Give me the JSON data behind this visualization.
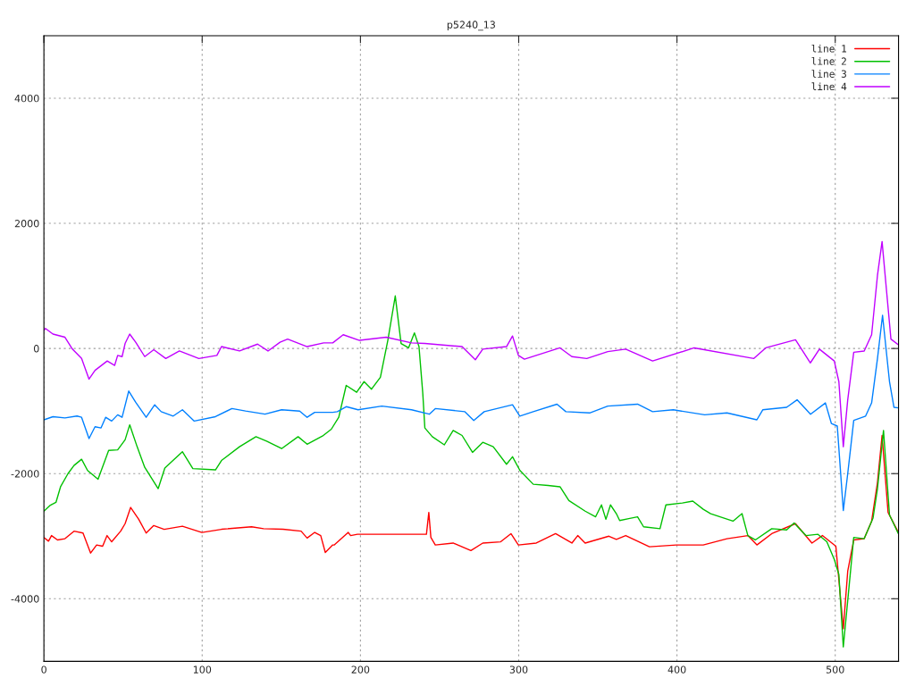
{
  "chart_data": {
    "type": "line",
    "title": "p5240_13",
    "xlim": [
      0,
      540
    ],
    "ylim": [
      -5000,
      5000
    ],
    "xticks": [
      0,
      100,
      200,
      300,
      400,
      500
    ],
    "yticks": [
      -4000,
      -2000,
      0,
      2000,
      4000
    ],
    "grid": true,
    "legend": "top right",
    "line_style": "solid",
    "series": [
      {
        "name": "line 1",
        "color": "#ff0000",
        "x": [
          0,
          2.9,
          4.8,
          8.6,
          13.3,
          19,
          24.7,
          29.5,
          33.3,
          37.1,
          39.9,
          42.8,
          48.5,
          51.3,
          54.8,
          59.9,
          64.6,
          69.4,
          76,
          87.5,
          99.8,
          112.2,
          131.2,
          138.8,
          151.1,
          162.5,
          166.3,
          171.1,
          174.9,
          177.8,
          182.5,
          183.5,
          192.3,
          193.8,
          198.1,
          241.7,
          243.2,
          244.5,
          247.3,
          258.6,
          269.8,
          277.3,
          288.6,
          295.1,
          299.8,
          311.1,
          323.3,
          333.6,
          337.3,
          342,
          357,
          361.7,
          367.6,
          382.6,
          399.6,
          416.6,
          431.6,
          444.8,
          450.5,
          459.9,
          474.9,
          485.3,
          491.9,
          500.4,
          505.1,
          507.9,
          511.7,
          518.3,
          523,
          526.7,
          529.6,
          533.4,
          539.9
        ],
        "values": [
          -3020,
          -3080,
          -2990,
          -3060,
          -3040,
          -2920,
          -2950,
          -3270,
          -3140,
          -3160,
          -2990,
          -3090,
          -2920,
          -2800,
          -2540,
          -2730,
          -2950,
          -2830,
          -2890,
          -2840,
          -2940,
          -2890,
          -2850,
          -2880,
          -2890,
          -2920,
          -3030,
          -2940,
          -2990,
          -3260,
          -3140,
          -3140,
          -2940,
          -2990,
          -2970,
          -2970,
          -2620,
          -3020,
          -3140,
          -3110,
          -3230,
          -3110,
          -3090,
          -2960,
          -3140,
          -3110,
          -2960,
          -3110,
          -2990,
          -3110,
          -3000,
          -3050,
          -2990,
          -3170,
          -3140,
          -3140,
          -3040,
          -2990,
          -3140,
          -2960,
          -2800,
          -3110,
          -2990,
          -3160,
          -4480,
          -3560,
          -3060,
          -3040,
          -2760,
          -2140,
          -1390,
          -2620,
          -2940
        ]
      },
      {
        "name": "line 2",
        "color": "#00c000",
        "x": [
          0,
          3.8,
          7.6,
          10.5,
          15.2,
          19,
          23.8,
          27.6,
          34.2,
          40.9,
          46.6,
          51.3,
          54.2,
          58.9,
          63.7,
          72.2,
          76.4,
          87.5,
          94.1,
          108.4,
          112.2,
          123.6,
          134,
          140.7,
          150.2,
          160.6,
          166.3,
          176,
          181.6,
          186.3,
          191,
          197.6,
          202.3,
          207,
          212.6,
          217.3,
          222,
          225.7,
          230.4,
          234.1,
          237,
          239.4,
          240.7,
          245.4,
          253,
          258.6,
          264.2,
          270.8,
          277.3,
          283.9,
          292.3,
          296.1,
          300.8,
          309.2,
          318.6,
          326.1,
          331.7,
          342,
          348.6,
          352.3,
          355.1,
          358,
          361.7,
          363.8,
          369.5,
          375.1,
          378.9,
          389.3,
          393,
          403.4,
          410,
          416.6,
          421.3,
          435.4,
          441.1,
          444.8,
          449.5,
          459.9,
          469.3,
          474,
          481.5,
          489.1,
          494.7,
          499.4,
          502.3,
          505.1,
          507.9,
          511.7,
          518.3,
          523.9,
          526.7,
          530.5,
          534.3,
          539.9
        ],
        "values": [
          -2600,
          -2510,
          -2460,
          -2210,
          -2000,
          -1870,
          -1770,
          -1950,
          -2090,
          -1630,
          -1620,
          -1460,
          -1220,
          -1570,
          -1900,
          -2240,
          -1910,
          -1650,
          -1920,
          -1940,
          -1790,
          -1570,
          -1410,
          -1480,
          -1600,
          -1410,
          -1530,
          -1400,
          -1290,
          -1100,
          -590,
          -700,
          -530,
          -650,
          -460,
          130,
          840,
          80,
          10,
          250,
          30,
          -720,
          -1270,
          -1410,
          -1540,
          -1310,
          -1390,
          -1660,
          -1500,
          -1570,
          -1850,
          -1730,
          -1950,
          -2170,
          -2190,
          -2210,
          -2430,
          -2600,
          -2690,
          -2500,
          -2730,
          -2500,
          -2640,
          -2750,
          -2720,
          -2690,
          -2850,
          -2880,
          -2500,
          -2470,
          -2440,
          -2570,
          -2640,
          -2760,
          -2640,
          -2990,
          -3060,
          -2880,
          -2900,
          -2790,
          -2990,
          -2970,
          -3090,
          -3370,
          -3610,
          -4770,
          -4030,
          -3020,
          -3040,
          -2710,
          -2240,
          -1310,
          -2660,
          -2960
        ]
      },
      {
        "name": "line 3",
        "color": "#0080ff",
        "x": [
          0,
          5.7,
          13.3,
          20.9,
          23.8,
          28.5,
          32.3,
          36.1,
          39,
          42.8,
          46.6,
          49.4,
          53.6,
          58,
          64.6,
          70,
          74.1,
          81.7,
          87.5,
          95,
          108.4,
          118.8,
          127.4,
          139.7,
          150.2,
          161.6,
          166.3,
          171.1,
          182.5,
          185.4,
          191,
          198.5,
          213.5,
          232.3,
          243.5,
          247.3,
          266,
          271.6,
          278.2,
          296.1,
          300.7,
          309.2,
          324.2,
          329.8,
          344.8,
          356.3,
          375.1,
          384.6,
          397.7,
          417.5,
          431.6,
          450.5,
          454.2,
          469.3,
          475.9,
          484.4,
          493.8,
          497.6,
          501.3,
          505.1,
          507.9,
          511.7,
          519.2,
          523,
          526.7,
          529.9,
          534.3,
          537.1,
          539.9
        ],
        "values": [
          -1140,
          -1090,
          -1110,
          -1080,
          -1100,
          -1440,
          -1250,
          -1270,
          -1100,
          -1160,
          -1060,
          -1100,
          -680,
          -860,
          -1100,
          -900,
          -1010,
          -1080,
          -980,
          -1160,
          -1090,
          -960,
          -1000,
          -1050,
          -980,
          -1000,
          -1100,
          -1020,
          -1020,
          -1010,
          -930,
          -980,
          -920,
          -980,
          -1050,
          -960,
          -1010,
          -1150,
          -1010,
          -900,
          -1080,
          -1010,
          -890,
          -1010,
          -1030,
          -920,
          -890,
          -1010,
          -980,
          -1060,
          -1030,
          -1140,
          -980,
          -940,
          -820,
          -1050,
          -870,
          -1200,
          -1240,
          -2590,
          -2000,
          -1150,
          -1080,
          -870,
          -160,
          530,
          -530,
          -940,
          -950
        ]
      },
      {
        "name": "line 4",
        "color": "#c000ff",
        "x": [
          0,
          1,
          5.7,
          13.3,
          18,
          23.8,
          28.5,
          32.3,
          40,
          44.7,
          46.6,
          49.4,
          51.3,
          54.2,
          58,
          63.7,
          69.4,
          77,
          85.6,
          97.9,
          109.3,
          112.2,
          123.6,
          135,
          141.6,
          149.2,
          154,
          166.3,
          176.8,
          182.5,
          189.1,
          199.4,
          216.3,
          232.3,
          240.7,
          264.2,
          272.6,
          277.3,
          292.3,
          296.1,
          299.8,
          303.6,
          326.1,
          333.6,
          343,
          356.3,
          367.6,
          384.6,
          410.9,
          448.6,
          456.1,
          474.9,
          484.3,
          490,
          499.4,
          502.3,
          505.1,
          507.9,
          511.7,
          518.3,
          523,
          526.7,
          529.6,
          532.4,
          535.2,
          539.9
        ],
        "values": [
          290,
          320,
          230,
          180,
          -10,
          -160,
          -490,
          -350,
          -200,
          -270,
          -110,
          -130,
          80,
          230,
          100,
          -130,
          -20,
          -160,
          -40,
          -160,
          -110,
          30,
          -40,
          70,
          -40,
          100,
          150,
          30,
          90,
          90,
          220,
          130,
          180,
          90,
          80,
          30,
          -180,
          -10,
          30,
          200,
          -110,
          -170,
          10,
          -130,
          -160,
          -50,
          -10,
          -200,
          10,
          -160,
          10,
          140,
          -230,
          -10,
          -200,
          -530,
          -1570,
          -820,
          -60,
          -40,
          220,
          1170,
          1710,
          930,
          150,
          60
        ]
      }
    ]
  }
}
